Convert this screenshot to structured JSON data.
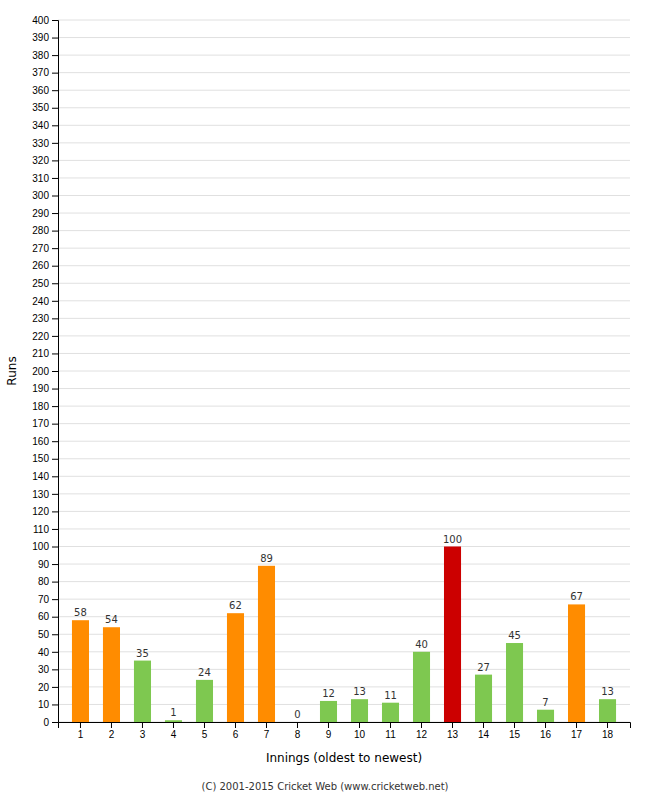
{
  "chart_data": {
    "type": "bar",
    "xlabel": "Innings (oldest to newest)",
    "ylabel": "Runs",
    "categories": [
      1,
      2,
      3,
      4,
      5,
      6,
      7,
      8,
      9,
      10,
      11,
      12,
      13,
      14,
      15,
      16,
      17,
      18
    ],
    "values": [
      58,
      54,
      35,
      1,
      24,
      62,
      89,
      0,
      12,
      13,
      11,
      40,
      100,
      27,
      45,
      7,
      67,
      13
    ],
    "colors": [
      "#ff8c00",
      "#ff8c00",
      "#7ec850",
      "#7ec850",
      "#7ec850",
      "#ff8c00",
      "#ff8c00",
      "#7ec850",
      "#7ec850",
      "#7ec850",
      "#7ec850",
      "#7ec850",
      "#cc0000",
      "#7ec850",
      "#7ec850",
      "#7ec850",
      "#ff8c00",
      "#7ec850"
    ],
    "ylim": [
      0,
      400
    ],
    "yticks": [
      0,
      10,
      20,
      30,
      40,
      50,
      60,
      70,
      80,
      90,
      100,
      110,
      120,
      130,
      140,
      150,
      160,
      170,
      180,
      190,
      200,
      210,
      220,
      230,
      240,
      250,
      260,
      270,
      280,
      290,
      300,
      310,
      320,
      330,
      340,
      350,
      360,
      370,
      380,
      390,
      400
    ],
    "grid": true,
    "data_labels": true,
    "footer": "(C) 2001-2015 Cricket Web (www.cricketweb.net)"
  }
}
